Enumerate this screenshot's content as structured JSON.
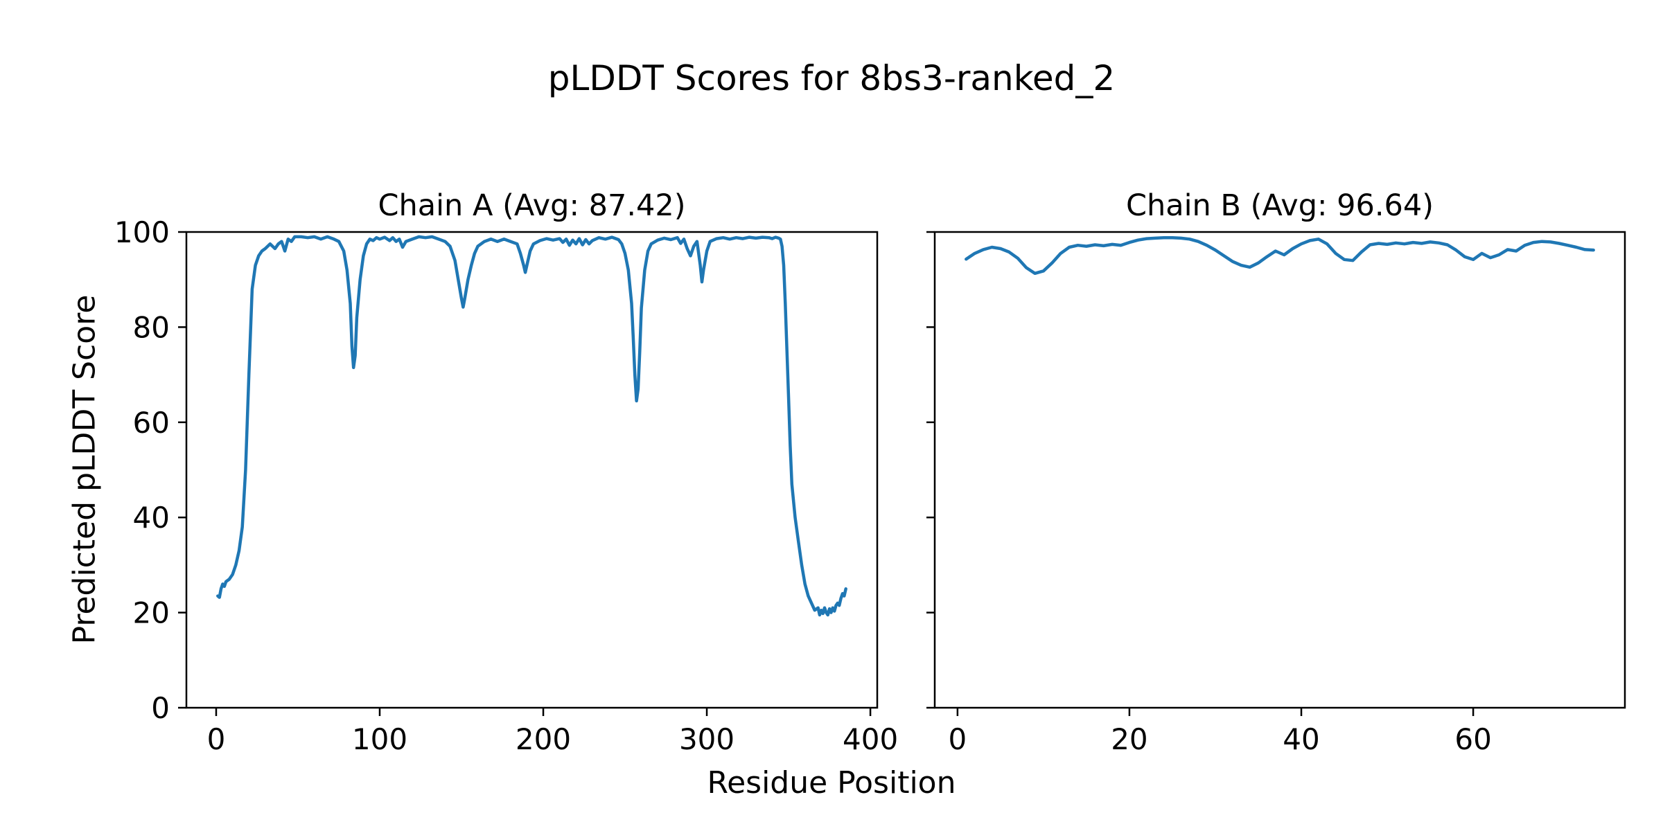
{
  "figure": {
    "title": "pLDDT Scores for 8bs3-ranked_2",
    "xlabel": "Residue Position",
    "ylabel": "Predicted pLDDT Score",
    "line_color": "#1f77b4",
    "background_color": "#ffffff",
    "text_color": "#000000"
  },
  "chart_data": [
    {
      "type": "line",
      "title": "Chain A (Avg: 87.42)",
      "avg_plddt": 87.42,
      "xlim": [
        -18.2,
        404.2
      ],
      "ylim": [
        0,
        100
      ],
      "xticks": [
        0,
        100,
        200,
        300,
        400
      ],
      "yticks": [
        0,
        20,
        40,
        60,
        80,
        100
      ],
      "show_ytick_labels": true,
      "grid": false,
      "legend": "none",
      "series": [
        {
          "name": "Chain A pLDDT",
          "points": [
            [
              1,
              23.5
            ],
            [
              2,
              23.2
            ],
            [
              3,
              25
            ],
            [
              4,
              26
            ],
            [
              5,
              25.5
            ],
            [
              6,
              26.5
            ],
            [
              8,
              27
            ],
            [
              10,
              28
            ],
            [
              12,
              30
            ],
            [
              14,
              33
            ],
            [
              16,
              38
            ],
            [
              18,
              50
            ],
            [
              20,
              70
            ],
            [
              22,
              88
            ],
            [
              24,
              93
            ],
            [
              26,
              95
            ],
            [
              28,
              96
            ],
            [
              30,
              96.5
            ],
            [
              33,
              97.5
            ],
            [
              36,
              96.5
            ],
            [
              38,
              97.5
            ],
            [
              40,
              98
            ],
            [
              42,
              96
            ],
            [
              44,
              98.5
            ],
            [
              46,
              98
            ],
            [
              48,
              99
            ],
            [
              52,
              99
            ],
            [
              56,
              98.8
            ],
            [
              60,
              99
            ],
            [
              64,
              98.5
            ],
            [
              68,
              99
            ],
            [
              72,
              98.5
            ],
            [
              75,
              98
            ],
            [
              78,
              96
            ],
            [
              80,
              92
            ],
            [
              82,
              85
            ],
            [
              83,
              76
            ],
            [
              84,
              71.5
            ],
            [
              85,
              74
            ],
            [
              86,
              82
            ],
            [
              88,
              90
            ],
            [
              90,
              95
            ],
            [
              92,
              97.5
            ],
            [
              94,
              98.5
            ],
            [
              96,
              98.2
            ],
            [
              98,
              98.8
            ],
            [
              100,
              98.5
            ],
            [
              103,
              98.9
            ],
            [
              106,
              98.2
            ],
            [
              108,
              98.8
            ],
            [
              110,
              98
            ],
            [
              112,
              98.5
            ],
            [
              114,
              96.8
            ],
            [
              116,
              98
            ],
            [
              120,
              98.5
            ],
            [
              124,
              99
            ],
            [
              128,
              98.8
            ],
            [
              132,
              99
            ],
            [
              136,
              98.5
            ],
            [
              140,
              98
            ],
            [
              143,
              97
            ],
            [
              146,
              94
            ],
            [
              148,
              90
            ],
            [
              150,
              86
            ],
            [
              151,
              84.2
            ],
            [
              152,
              86
            ],
            [
              154,
              90
            ],
            [
              156,
              93
            ],
            [
              158,
              95.5
            ],
            [
              160,
              97
            ],
            [
              164,
              98
            ],
            [
              168,
              98.5
            ],
            [
              172,
              98
            ],
            [
              176,
              98.5
            ],
            [
              180,
              98
            ],
            [
              184,
              97.5
            ],
            [
              186,
              95.5
            ],
            [
              188,
              93
            ],
            [
              189,
              91.5
            ],
            [
              190,
              93
            ],
            [
              192,
              96
            ],
            [
              194,
              97.5
            ],
            [
              198,
              98.2
            ],
            [
              202,
              98.6
            ],
            [
              206,
              98.3
            ],
            [
              210,
              98.6
            ],
            [
              212,
              97.8
            ],
            [
              214,
              98.5
            ],
            [
              216,
              97.2
            ],
            [
              218,
              98.3
            ],
            [
              220,
              97.5
            ],
            [
              222,
              98.6
            ],
            [
              224,
              97.3
            ],
            [
              226,
              98.4
            ],
            [
              228,
              97.5
            ],
            [
              230,
              98.2
            ],
            [
              234,
              98.8
            ],
            [
              238,
              98.5
            ],
            [
              242,
              98.9
            ],
            [
              246,
              98.4
            ],
            [
              248,
              97.5
            ],
            [
              250,
              95.5
            ],
            [
              252,
              92
            ],
            [
              254,
              85
            ],
            [
              255,
              78
            ],
            [
              256,
              70
            ],
            [
              257,
              64.5
            ],
            [
              258,
              67
            ],
            [
              259,
              75
            ],
            [
              260,
              84
            ],
            [
              262,
              92
            ],
            [
              264,
              96
            ],
            [
              266,
              97.5
            ],
            [
              270,
              98.3
            ],
            [
              274,
              98.7
            ],
            [
              278,
              98.4
            ],
            [
              282,
              98.8
            ],
            [
              284,
              97.6
            ],
            [
              286,
              98.5
            ],
            [
              288,
              96.5
            ],
            [
              290,
              95
            ],
            [
              292,
              97
            ],
            [
              294,
              98
            ],
            [
              296,
              93
            ],
            [
              297,
              89.5
            ],
            [
              298,
              92
            ],
            [
              300,
              96
            ],
            [
              302,
              98
            ],
            [
              306,
              98.6
            ],
            [
              310,
              98.8
            ],
            [
              314,
              98.5
            ],
            [
              318,
              98.8
            ],
            [
              322,
              98.6
            ],
            [
              326,
              98.9
            ],
            [
              330,
              98.7
            ],
            [
              334,
              98.9
            ],
            [
              338,
              98.8
            ],
            [
              340,
              98.6
            ],
            [
              342,
              98.9
            ],
            [
              344,
              98.7
            ],
            [
              345,
              98.5
            ],
            [
              346,
              97
            ],
            [
              347,
              93
            ],
            [
              348,
              85
            ],
            [
              349,
              75
            ],
            [
              350,
              65
            ],
            [
              351,
              55
            ],
            [
              352,
              47
            ],
            [
              354,
              40
            ],
            [
              356,
              35
            ],
            [
              358,
              30
            ],
            [
              360,
              26
            ],
            [
              362,
              23.5
            ],
            [
              364,
              22
            ],
            [
              366,
              20.5
            ],
            [
              368,
              21
            ],
            [
              369,
              19.5
            ],
            [
              370,
              20.5
            ],
            [
              371,
              19.8
            ],
            [
              372,
              21
            ],
            [
              373,
              20
            ],
            [
              374,
              19.5
            ],
            [
              375,
              20.8
            ],
            [
              376,
              20
            ],
            [
              377,
              21
            ],
            [
              378,
              20.3
            ],
            [
              379,
              21.5
            ],
            [
              380,
              22
            ],
            [
              381,
              21.5
            ],
            [
              382,
              23
            ],
            [
              383,
              24
            ],
            [
              384,
              23.5
            ],
            [
              385,
              25
            ]
          ]
        }
      ]
    },
    {
      "type": "line",
      "title": "Chain B (Avg: 96.64)",
      "avg_plddt": 96.64,
      "xlim": [
        -2.65,
        77.65
      ],
      "ylim": [
        0,
        100
      ],
      "xticks": [
        0,
        20,
        40,
        60
      ],
      "yticks": [
        0,
        20,
        40,
        60,
        80,
        100
      ],
      "show_ytick_labels": false,
      "grid": false,
      "legend": "none",
      "series": [
        {
          "name": "Chain B pLDDT",
          "points": [
            [
              1,
              94.3
            ],
            [
              2,
              95.5
            ],
            [
              3,
              96.3
            ],
            [
              4,
              96.8
            ],
            [
              5,
              96.5
            ],
            [
              6,
              95.8
            ],
            [
              7,
              94.5
            ],
            [
              8,
              92.5
            ],
            [
              9,
              91.3
            ],
            [
              10,
              91.8
            ],
            [
              11,
              93.5
            ],
            [
              12,
              95.5
            ],
            [
              13,
              96.8
            ],
            [
              14,
              97.2
            ],
            [
              15,
              97
            ],
            [
              16,
              97.3
            ],
            [
              17,
              97.1
            ],
            [
              18,
              97.4
            ],
            [
              19,
              97.2
            ],
            [
              20,
              97.8
            ],
            [
              21,
              98.3
            ],
            [
              22,
              98.6
            ],
            [
              23,
              98.7
            ],
            [
              24,
              98.8
            ],
            [
              25,
              98.8
            ],
            [
              26,
              98.7
            ],
            [
              27,
              98.5
            ],
            [
              28,
              98
            ],
            [
              29,
              97.2
            ],
            [
              30,
              96.2
            ],
            [
              31,
              95
            ],
            [
              32,
              93.8
            ],
            [
              33,
              93
            ],
            [
              34,
              92.6
            ],
            [
              35,
              93.5
            ],
            [
              36,
              94.8
            ],
            [
              37,
              96
            ],
            [
              38,
              95.2
            ],
            [
              39,
              96.5
            ],
            [
              40,
              97.5
            ],
            [
              41,
              98.2
            ],
            [
              42,
              98.5
            ],
            [
              43,
              97.5
            ],
            [
              44,
              95.5
            ],
            [
              45,
              94.2
            ],
            [
              46,
              94
            ],
            [
              47,
              95.8
            ],
            [
              48,
              97.3
            ],
            [
              49,
              97.6
            ],
            [
              50,
              97.4
            ],
            [
              51,
              97.7
            ],
            [
              52,
              97.5
            ],
            [
              53,
              97.8
            ],
            [
              54,
              97.6
            ],
            [
              55,
              97.9
            ],
            [
              56,
              97.7
            ],
            [
              57,
              97.3
            ],
            [
              58,
              96.2
            ],
            [
              59,
              94.8
            ],
            [
              60,
              94.2
            ],
            [
              61,
              95.5
            ],
            [
              62,
              94.6
            ],
            [
              63,
              95.2
            ],
            [
              64,
              96.3
            ],
            [
              65,
              96
            ],
            [
              66,
              97.2
            ],
            [
              67,
              97.8
            ],
            [
              68,
              98
            ],
            [
              69,
              97.9
            ],
            [
              70,
              97.6
            ],
            [
              71,
              97.2
            ],
            [
              72,
              96.8
            ],
            [
              73,
              96.3
            ],
            [
              74,
              96.2
            ]
          ]
        }
      ]
    }
  ]
}
